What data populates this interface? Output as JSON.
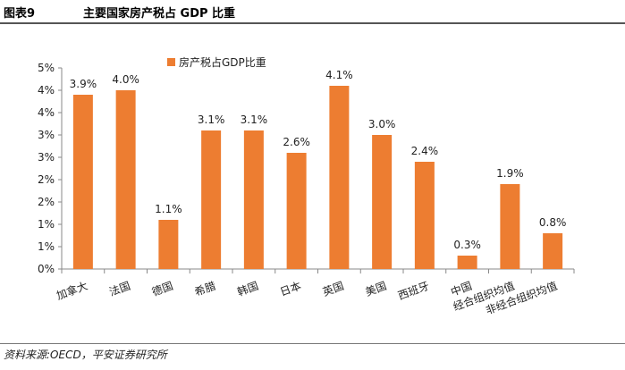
{
  "header": {
    "figure_no": "图表9",
    "title": "主要国家房产税占 GDP 比重"
  },
  "source": "资料来源:OECD，平安证券研究所",
  "colors": {
    "bar": "#ED7D31",
    "axis": "#888888"
  },
  "chart_data": {
    "type": "bar",
    "categories": [
      "加拿大",
      "法国",
      "德国",
      "希腊",
      "韩国",
      "日本",
      "英国",
      "美国",
      "西班牙",
      "中国",
      "经合组织均值",
      "非经合组织均值"
    ],
    "series": [
      {
        "name": "房产税占GDP比重",
        "values": [
          3.9,
          4.0,
          1.1,
          3.1,
          3.1,
          2.6,
          4.1,
          3.0,
          2.4,
          0.3,
          1.9,
          0.8
        ],
        "value_labels": [
          "3.9%",
          "4.0%",
          "1.1%",
          "3.1%",
          "3.1%",
          "2.6%",
          "4.1%",
          "3.0%",
          "2.4%",
          "0.3%",
          "1.9%",
          "0.8%"
        ]
      }
    ],
    "category_labels": [
      [
        "加拿大"
      ],
      [
        "法国"
      ],
      [
        "德国"
      ],
      [
        "希腊"
      ],
      [
        "韩国"
      ],
      [
        "日本"
      ],
      [
        "英国"
      ],
      [
        "美国"
      ],
      [
        "西班牙"
      ],
      [
        "中国"
      ],
      [
        "经合组织均值"
      ],
      [
        "非经合组织均值"
      ]
    ],
    "ytick_labels": [
      "0%",
      "1%",
      "1%",
      "2%",
      "2%",
      "3%",
      "3%",
      "4%",
      "4%",
      "5%"
    ],
    "ylim": [
      0,
      4.5
    ],
    "legend_position": "top-left",
    "grid": false
  }
}
